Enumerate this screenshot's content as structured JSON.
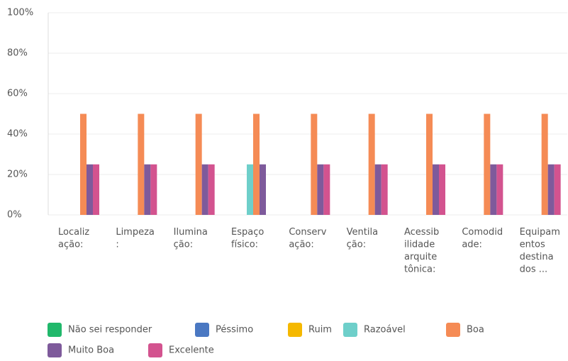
{
  "chart_data": {
    "type": "bar",
    "categories": [
      "Localização:",
      "Limpeza:",
      "Iluminação:",
      "Espaço físico:",
      "Conservação:",
      "Ventilação:",
      "Acessibilidade arquitetônica:",
      "Comodidade:",
      "Equipamentos destinados ..."
    ],
    "series": [
      {
        "name": "Não sei responder",
        "color": "#21b86b",
        "values": [
          0,
          0,
          0,
          0,
          0,
          0,
          0,
          0,
          0
        ]
      },
      {
        "name": "Péssimo",
        "color": "#4a78c2",
        "values": [
          0,
          0,
          0,
          0,
          0,
          0,
          0,
          0,
          0
        ]
      },
      {
        "name": "Ruim",
        "color": "#f5b800",
        "values": [
          0,
          0,
          0,
          0,
          0,
          0,
          0,
          0,
          0
        ]
      },
      {
        "name": "Razoável",
        "color": "#6ecfca",
        "values": [
          0,
          0,
          0,
          25,
          0,
          0,
          0,
          0,
          0
        ]
      },
      {
        "name": "Boa",
        "color": "#f58b55",
        "values": [
          50,
          50,
          50,
          50,
          50,
          50,
          50,
          50,
          50
        ]
      },
      {
        "name": "Muito Boa",
        "color": "#7e5a9b",
        "values": [
          25,
          25,
          25,
          25,
          25,
          25,
          25,
          25,
          25
        ]
      },
      {
        "name": "Excelente",
        "color": "#d3538f",
        "values": [
          25,
          25,
          25,
          0,
          25,
          25,
          25,
          25,
          25
        ]
      }
    ],
    "ylim": [
      0,
      100
    ],
    "yticks": [
      {
        "value": 0,
        "label": "0%"
      },
      {
        "value": 20,
        "label": "20%"
      },
      {
        "value": 40,
        "label": "40%"
      },
      {
        "value": 60,
        "label": "60%"
      },
      {
        "value": 80,
        "label": "80%"
      },
      {
        "value": 100,
        "label": "100%"
      }
    ],
    "grid": true
  }
}
